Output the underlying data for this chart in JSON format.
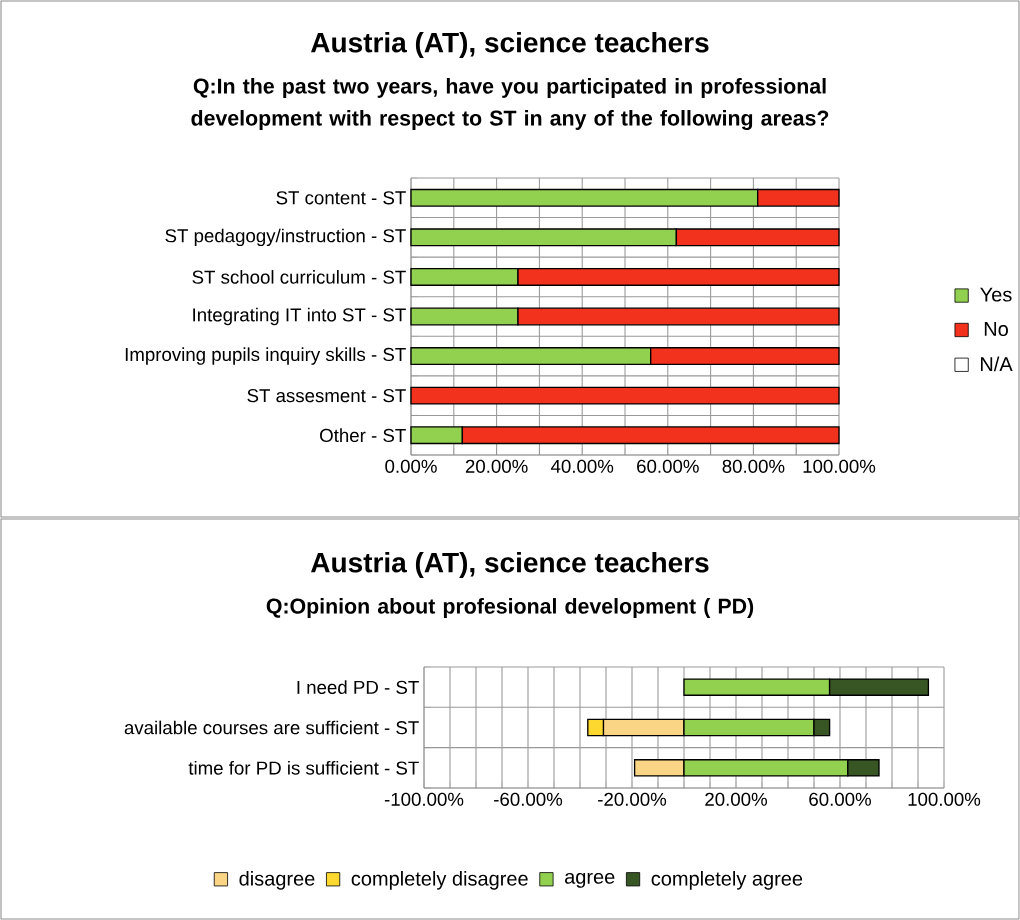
{
  "chart_data": [
    {
      "type": "bar",
      "orientation": "horizontal",
      "stacked": true,
      "title": "Austria (AT), science teachers",
      "subtitle": "Q:In the past two years, have you participated in professional development with respect to ST in any of the following areas?",
      "categories": [
        "ST content - ST",
        "ST pedagogy/instruction - ST",
        "ST school curriculum - ST",
        "Integrating IT into ST - ST",
        "Improving pupils inquiry skills - ST",
        "ST assesment - ST",
        "Other - ST"
      ],
      "series": [
        {
          "name": "Yes",
          "color": "#92d050",
          "values": [
            81,
            62,
            25,
            25,
            56,
            0,
            12
          ]
        },
        {
          "name": "No",
          "color": "#f3321e",
          "values": [
            19,
            38,
            75,
            75,
            44,
            100,
            88
          ]
        },
        {
          "name": "N/A",
          "color": "#ffffff",
          "values": [
            0,
            0,
            0,
            0,
            0,
            0,
            0
          ]
        }
      ],
      "xlim": [
        0,
        100
      ],
      "xticks": [
        {
          "value": 0,
          "label": "0.00%"
        },
        {
          "value": 10,
          "label": null
        },
        {
          "value": 20,
          "label": "20.00%"
        },
        {
          "value": 30,
          "label": null
        },
        {
          "value": 40,
          "label": "40.00%"
        },
        {
          "value": 50,
          "label": null
        },
        {
          "value": 60,
          "label": "60.00%"
        },
        {
          "value": 70,
          "label": null
        },
        {
          "value": 80,
          "label": "80.00%"
        },
        {
          "value": 90,
          "label": null
        },
        {
          "value": 100,
          "label": "100.00%"
        }
      ],
      "grid": true,
      "legend": "right"
    },
    {
      "type": "bar",
      "orientation": "horizontal",
      "stacked": true,
      "title": "Austria (AT), science teachers",
      "subtitle": "Q:Opinion about profesional development ( PD)",
      "categories": [
        "I need PD - ST",
        "available courses are sufficient - ST",
        "time for PD is sufficient - ST"
      ],
      "series": [
        {
          "name": "disagree",
          "color": "#fad586",
          "values": [
            0,
            -31,
            -19
          ]
        },
        {
          "name": "completely disagree",
          "color": "#fdd82e",
          "values": [
            0,
            -6,
            0
          ]
        },
        {
          "name": "agree",
          "color": "#92d050",
          "values": [
            56,
            50,
            63
          ]
        },
        {
          "name": "completely agree",
          "color": "#375623",
          "values": [
            38,
            6,
            12
          ]
        }
      ],
      "xlim": [
        -100,
        100
      ],
      "xticks": [
        {
          "value": -100,
          "label": "-100.00%"
        },
        {
          "value": -90,
          "label": null
        },
        {
          "value": -80,
          "label": null
        },
        {
          "value": -70,
          "label": null
        },
        {
          "value": -60,
          "label": "-60.00%"
        },
        {
          "value": -50,
          "label": null
        },
        {
          "value": -40,
          "label": null
        },
        {
          "value": -30,
          "label": null
        },
        {
          "value": -20,
          "label": "-20.00%"
        },
        {
          "value": -10,
          "label": null
        },
        {
          "value": 0,
          "label": null
        },
        {
          "value": 10,
          "label": null
        },
        {
          "value": 20,
          "label": "20.00%"
        },
        {
          "value": 30,
          "label": null
        },
        {
          "value": 40,
          "label": null
        },
        {
          "value": 50,
          "label": null
        },
        {
          "value": 60,
          "label": "60.00%"
        },
        {
          "value": 70,
          "label": null
        },
        {
          "value": 80,
          "label": null
        },
        {
          "value": 90,
          "label": null
        },
        {
          "value": 100,
          "label": "100.00%"
        }
      ],
      "grid": true,
      "legend": "bottom"
    }
  ]
}
